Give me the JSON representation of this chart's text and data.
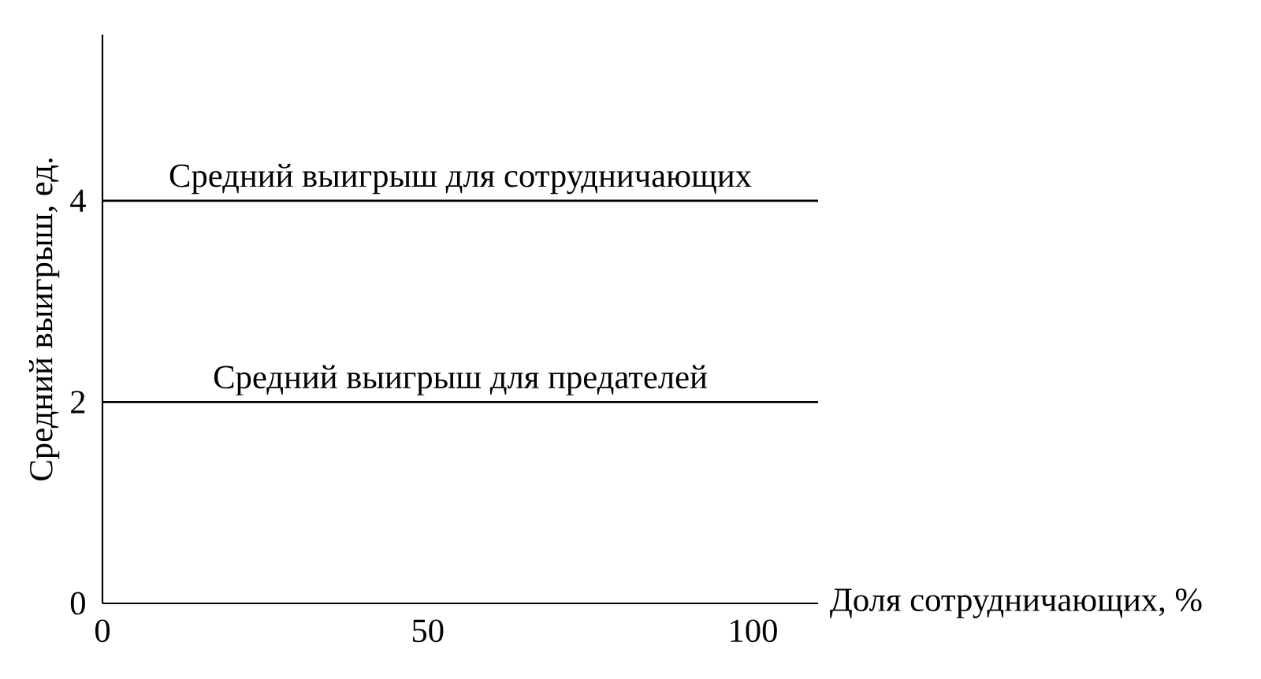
{
  "chart_data": {
    "type": "line",
    "xlabel": "Доля сотрудничающих, %",
    "ylabel": "Средний выигрыш, ед.",
    "x": [
      0,
      110
    ],
    "series": [
      {
        "name": "Средний выигрыш для сотрудничающих",
        "color": "#000000",
        "values": [
          4,
          4
        ]
      },
      {
        "name": "Средний выигрыш для предателей",
        "color": "#000000",
        "values": [
          2,
          2
        ]
      }
    ],
    "xlim": [
      0,
      110
    ],
    "ylim": [
      0,
      5.65
    ],
    "xticks": [
      0,
      50,
      100
    ],
    "yticks": [
      0,
      2,
      4
    ],
    "grid": false,
    "marker": "none",
    "line_style": "solid"
  }
}
